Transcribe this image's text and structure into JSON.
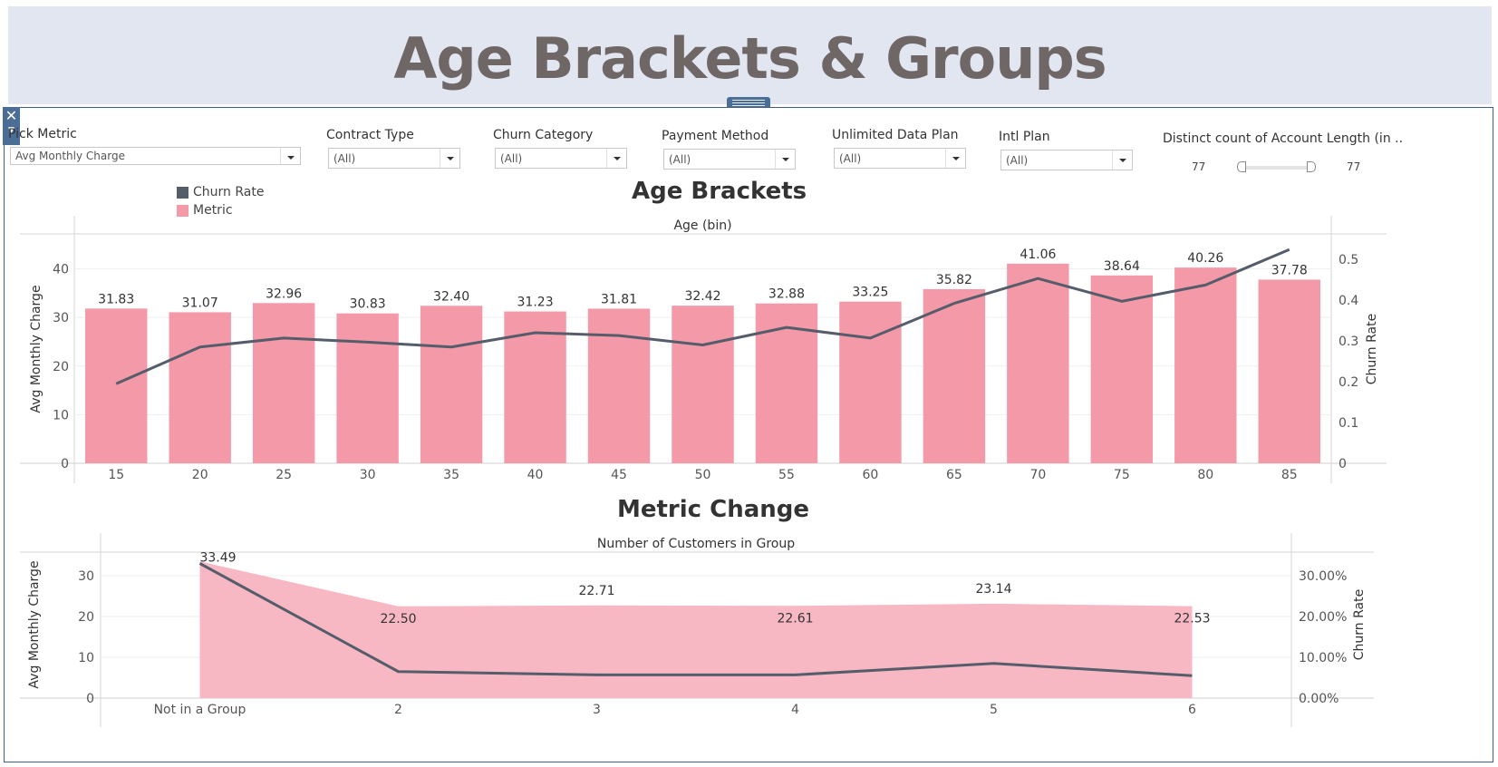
{
  "header": {
    "title": "Age Brackets & Groups"
  },
  "filters": {
    "pick_metric": {
      "label": "Pick Metric",
      "value": "Avg Monthly Charge"
    },
    "contract_type": {
      "label": "Contract Type",
      "value": "(All)"
    },
    "churn_category": {
      "label": "Churn Category",
      "value": "(All)"
    },
    "payment_method": {
      "label": "Payment Method",
      "value": "(All)"
    },
    "unlimited_data_plan": {
      "label": "Unlimited Data Plan",
      "value": "(All)"
    },
    "intl_plan": {
      "label": "Intl Plan",
      "value": "(All)"
    },
    "account_length": {
      "label": "Distinct count of Account Length (in ..",
      "min": "77",
      "max": "77"
    }
  },
  "legend": {
    "items": [
      {
        "label": "Churn Rate",
        "color": "#555d6b"
      },
      {
        "label": "Metric",
        "color": "#f499a8"
      }
    ]
  },
  "chart_data": [
    {
      "type": "bar",
      "title": "Age Brackets",
      "xlabel": "Age (bin)",
      "ylabel": "Avg Monthly Charge",
      "y2label": "Churn Rate",
      "categories": [
        "15",
        "20",
        "25",
        "30",
        "35",
        "40",
        "45",
        "50",
        "55",
        "60",
        "65",
        "70",
        "75",
        "80",
        "85"
      ],
      "series": [
        {
          "name": "Metric",
          "type": "bar",
          "axis": "left",
          "color": "#f499a8",
          "values": [
            31.83,
            31.07,
            32.96,
            30.83,
            32.4,
            31.23,
            31.81,
            32.42,
            32.88,
            33.25,
            35.82,
            41.06,
            38.64,
            40.26,
            37.78
          ],
          "labels": [
            "31.83",
            "31.07",
            "32.96",
            "30.83",
            "32.40",
            "31.23",
            "31.81",
            "32.42",
            "32.88",
            "33.25",
            "35.82",
            "41.06",
            "38.64",
            "40.26",
            "37.78"
          ]
        },
        {
          "name": "Churn Rate",
          "type": "line",
          "axis": "right",
          "color": "#555d6b",
          "values": [
            0.195,
            0.285,
            0.307,
            0.297,
            0.285,
            0.32,
            0.313,
            0.29,
            0.333,
            0.307,
            0.392,
            0.453,
            0.397,
            0.437,
            0.524
          ]
        }
      ],
      "ylim": [
        0,
        47
      ],
      "y_ticks": [
        "0",
        "10",
        "20",
        "30",
        "40"
      ],
      "y2lim": [
        0,
        0.56
      ],
      "y2_ticks": [
        "0",
        "0.1",
        "0.2",
        "0.3",
        "0.4",
        "0.5"
      ],
      "grid": true
    },
    {
      "type": "area",
      "title": "Metric Change",
      "xlabel": "Number of Customers in Group",
      "ylabel": "Avg Monthly Charge",
      "y2label": "Churn Rate",
      "categories": [
        "Not in a Group",
        "2",
        "3",
        "4",
        "5",
        "6"
      ],
      "series": [
        {
          "name": "Metric",
          "type": "area",
          "axis": "left",
          "color": "#f7b8c3",
          "values": [
            33.49,
            22.5,
            22.71,
            22.61,
            23.14,
            22.53
          ],
          "labels": [
            "33.49",
            "22.50",
            "22.71",
            "22.61",
            "23.14",
            "22.53"
          ]
        },
        {
          "name": "Churn Rate",
          "type": "line",
          "axis": "right",
          "color": "#555d6b",
          "values": [
            0.33,
            0.065,
            0.057,
            0.057,
            0.085,
            0.055
          ]
        }
      ],
      "ylim": [
        0,
        36
      ],
      "y_ticks": [
        "0",
        "10",
        "20",
        "30"
      ],
      "y2lim": [
        0,
        0.36
      ],
      "y2_ticks": [
        "0.00%",
        "10.00%",
        "20.00%",
        "30.00%"
      ],
      "grid": true
    }
  ]
}
